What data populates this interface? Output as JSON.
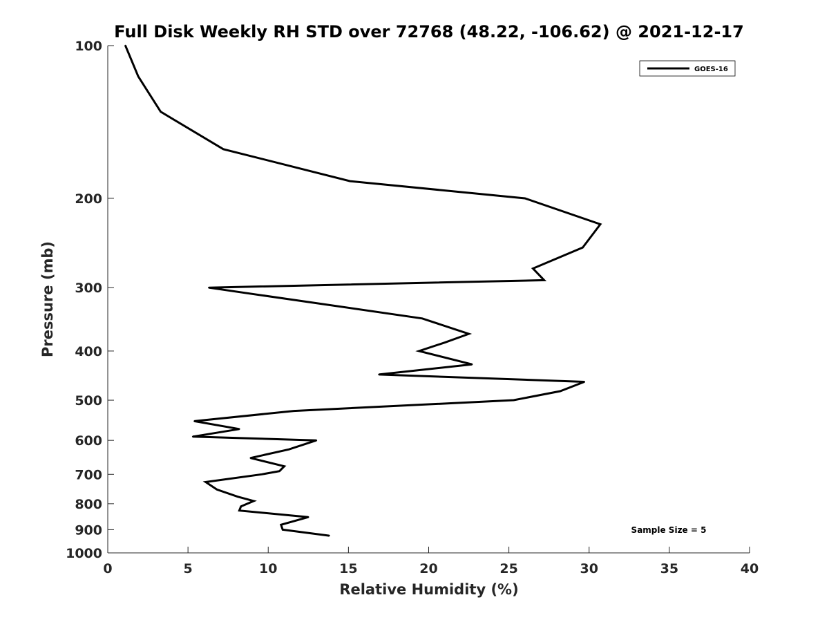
{
  "chart_data": {
    "type": "line",
    "title": "Full Disk Weekly RH STD over 72768 (48.22, -106.62) @ 2021-12-17",
    "xlabel": "Relative Humidity (%)",
    "ylabel": "Pressure (mb)",
    "xlim": [
      0,
      40
    ],
    "ylim": [
      100,
      1000
    ],
    "y_scale": "log",
    "y_reversed": true,
    "grid": false,
    "legend_position": "top-right",
    "x_ticks": [
      "0",
      "5",
      "10",
      "15",
      "20",
      "25",
      "30",
      "35",
      "40"
    ],
    "y_ticks": [
      "100",
      "200",
      "300",
      "400",
      "500",
      "600",
      "700",
      "800",
      "900",
      "1000"
    ],
    "series": [
      {
        "name": "GOES-16",
        "color": "#000000",
        "points": [
          {
            "x": 1.1,
            "y": 100
          },
          {
            "x": 1.9,
            "y": 115
          },
          {
            "x": 3.3,
            "y": 135
          },
          {
            "x": 7.2,
            "y": 160
          },
          {
            "x": 15.1,
            "y": 185
          },
          {
            "x": 26.0,
            "y": 200
          },
          {
            "x": 30.7,
            "y": 225
          },
          {
            "x": 29.6,
            "y": 250
          },
          {
            "x": 26.5,
            "y": 275
          },
          {
            "x": 27.2,
            "y": 290
          },
          {
            "x": 6.3,
            "y": 300
          },
          {
            "x": 19.6,
            "y": 345
          },
          {
            "x": 22.5,
            "y": 370
          },
          {
            "x": 21.0,
            "y": 385
          },
          {
            "x": 19.4,
            "y": 400
          },
          {
            "x": 22.7,
            "y": 425
          },
          {
            "x": 16.9,
            "y": 445
          },
          {
            "x": 29.7,
            "y": 460
          },
          {
            "x": 28.2,
            "y": 480
          },
          {
            "x": 25.3,
            "y": 500
          },
          {
            "x": 11.6,
            "y": 525
          },
          {
            "x": 5.4,
            "y": 550
          },
          {
            "x": 8.2,
            "y": 570
          },
          {
            "x": 5.3,
            "y": 590
          },
          {
            "x": 13.0,
            "y": 600
          },
          {
            "x": 11.3,
            "y": 625
          },
          {
            "x": 8.9,
            "y": 650
          },
          {
            "x": 11.0,
            "y": 675
          },
          {
            "x": 10.7,
            "y": 690
          },
          {
            "x": 9.6,
            "y": 700
          },
          {
            "x": 6.1,
            "y": 725
          },
          {
            "x": 6.8,
            "y": 750
          },
          {
            "x": 8.1,
            "y": 775
          },
          {
            "x": 9.1,
            "y": 790
          },
          {
            "x": 8.3,
            "y": 810
          },
          {
            "x": 8.2,
            "y": 825
          },
          {
            "x": 12.5,
            "y": 850
          },
          {
            "x": 10.8,
            "y": 880
          },
          {
            "x": 10.9,
            "y": 900
          },
          {
            "x": 13.8,
            "y": 925
          }
        ]
      }
    ],
    "annotations": [
      "Sample Size = 5"
    ]
  }
}
